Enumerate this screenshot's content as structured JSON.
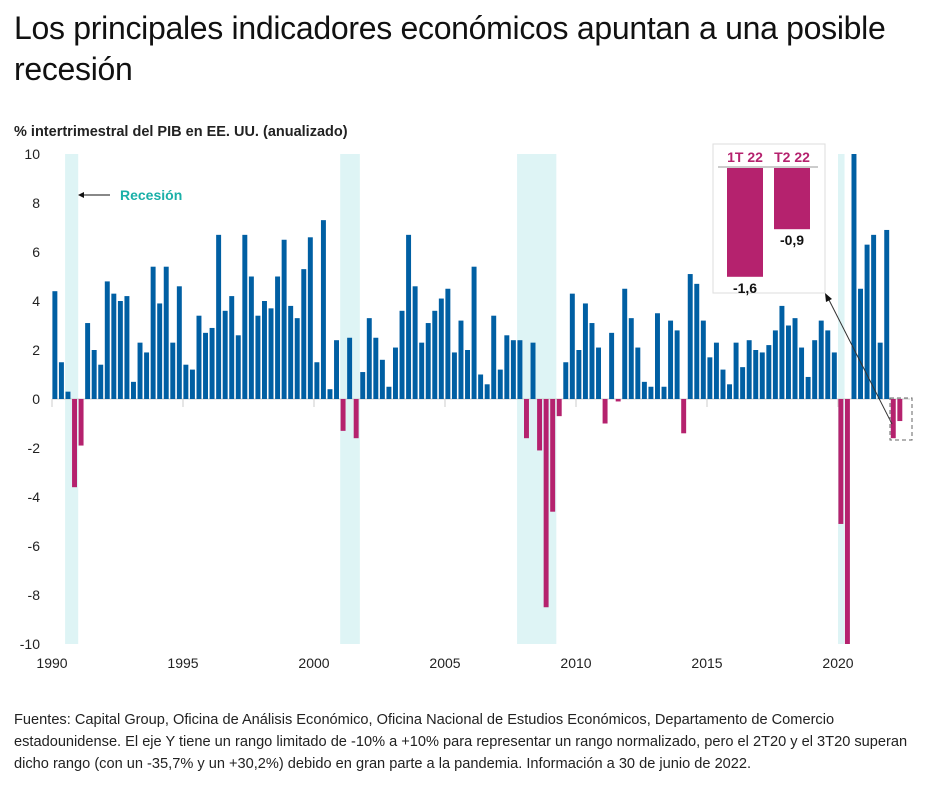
{
  "header": {
    "title": "Los principales indicadores económicos apuntan a una posible recesión",
    "subtitle": "% intertrimestral del PIB en EE. UU. (anualizado)"
  },
  "footnote": "Fuentes: Capital Group, Oficina de Análisis Económico, Oficina Nacional de Estudios Económicos, Departamento de Comercio estadounidense. El eje Y tiene un rango limitado de -10% a +10% para representar un rango normalizado, pero el 2T20 y el 3T20 superan dicho rango (con un -35,7% y un +30,2%) debido en gran parte a la pandemia. Información a 30 de junio de 2022.",
  "colors": {
    "positive": "#005fa3",
    "negative": "#b5226e",
    "recession": "#def4f5",
    "recession_label": "#1ab0a8"
  },
  "chart_data": {
    "type": "bar",
    "title": "% intertrimestral del PIB en EE. UU. (anualizado)",
    "xlabel": "",
    "ylabel": "",
    "ylim": [
      -10,
      10
    ],
    "yticks": [
      10,
      8,
      6,
      4,
      2,
      0,
      -2,
      -4,
      -6,
      -8,
      -10
    ],
    "ytick_labels": [
      "10",
      "8",
      "6",
      "4",
      "2",
      "0",
      "-2",
      "-4",
      "-6",
      "-8",
      "-10"
    ],
    "xticks": [
      1990,
      1995,
      2000,
      2005,
      2010,
      2015,
      2020
    ],
    "xtick_labels": [
      "1990",
      "1995",
      "2000",
      "2005",
      "2010",
      "2015",
      "2020"
    ],
    "start_year": 1990,
    "start_quarter": 1,
    "clipped_note": "2T20 = -35,7 and 3T20 = +30,2 exceed axis range",
    "values": [
      4.4,
      1.5,
      0.3,
      -3.6,
      -1.9,
      3.1,
      2.0,
      1.4,
      4.8,
      4.3,
      4.0,
      4.2,
      0.7,
      2.3,
      1.9,
      5.4,
      3.9,
      5.4,
      2.3,
      4.6,
      1.4,
      1.2,
      3.4,
      2.7,
      2.9,
      6.7,
      3.6,
      4.2,
      2.6,
      6.7,
      5.0,
      3.4,
      4.0,
      3.7,
      5.0,
      6.5,
      3.8,
      3.3,
      5.3,
      6.6,
      1.5,
      7.3,
      0.4,
      2.4,
      -1.3,
      2.5,
      -1.6,
      1.1,
      3.3,
      2.5,
      1.6,
      0.5,
      2.1,
      3.6,
      6.7,
      4.6,
      2.3,
      3.1,
      3.6,
      4.1,
      4.5,
      1.9,
      3.2,
      2.0,
      5.4,
      1.0,
      0.6,
      3.4,
      1.2,
      2.6,
      2.4,
      2.4,
      -1.6,
      2.3,
      -2.1,
      -8.5,
      -4.6,
      -0.7,
      1.5,
      4.3,
      2.0,
      3.9,
      3.1,
      2.1,
      -1.0,
      2.7,
      -0.1,
      4.5,
      3.3,
      2.1,
      0.7,
      0.5,
      3.5,
      0.5,
      3.2,
      2.8,
      -1.4,
      5.1,
      4.7,
      3.2,
      1.7,
      2.3,
      1.2,
      0.6,
      2.3,
      1.3,
      2.4,
      2.0,
      1.9,
      2.2,
      2.8,
      3.8,
      3.0,
      3.3,
      2.1,
      0.9,
      2.4,
      3.2,
      2.8,
      1.9,
      -5.1,
      -35.7,
      30.2,
      4.5,
      6.3,
      6.7,
      2.3,
      6.9,
      -1.6,
      -0.9
    ],
    "recession_periods": [
      {
        "start": 1990.5,
        "end": 1991.0
      },
      {
        "start": 2001.0,
        "end": 2001.75
      },
      {
        "start": 2007.75,
        "end": 2009.25
      },
      {
        "start": 2020.0,
        "end": 2020.25
      }
    ],
    "annotation": {
      "recession_label": "Recesión",
      "inset": {
        "categories": [
          "1T 22",
          "T2 22"
        ],
        "values": [
          -1.6,
          -0.9
        ],
        "value_labels": [
          "-1,6",
          "-0,9"
        ]
      }
    }
  }
}
